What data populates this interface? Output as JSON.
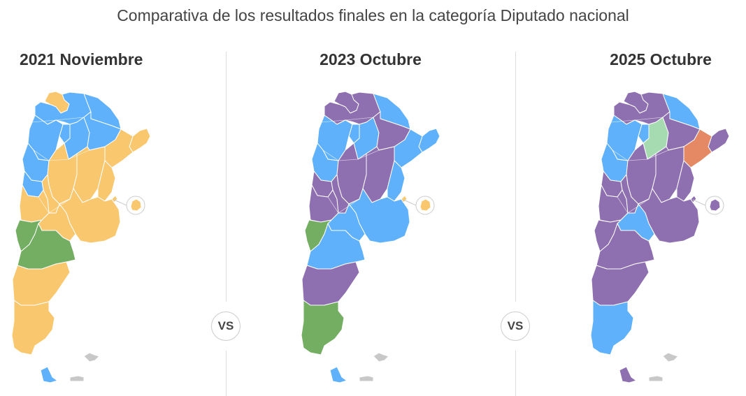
{
  "title": "Comparativa de los resultados finales en la categoría Diputado nacional",
  "vs_label": "VS",
  "colors": {
    "yellow": "#F9C76E",
    "blue": "#5EB1FA",
    "green": "#74AE63",
    "purple": "#8E6FB0",
    "lightgreen": "#A6DAB0",
    "orange": "#E48963",
    "grey": "#C8C8C8"
  },
  "maps": [
    {
      "title": "2021 Noviembre",
      "regions": {
        "jujuy": "yellow",
        "salta": "blue",
        "formosa": "blue",
        "misiones": "yellow",
        "tucuman": "blue",
        "catamarca": "blue",
        "santiago": "blue",
        "chaco": "blue",
        "corrientes": "yellow",
        "larioja": "blue",
        "sanjuan": "blue",
        "cordoba": "yellow",
        "santafe": "yellow",
        "entrerios": "yellow",
        "mendoza": "yellow",
        "sanluis": "yellow",
        "buenosaires": "yellow",
        "caba": "yellow",
        "lapampa": "yellow",
        "neuquen": "green",
        "rionegro": "green",
        "chubut": "yellow",
        "santacruz": "yellow",
        "tierradelfuego": "blue",
        "malvinas": "grey"
      }
    },
    {
      "title": "2023 Octubre",
      "regions": {
        "jujuy": "purple",
        "salta": "purple",
        "formosa": "blue",
        "misiones": "blue",
        "tucuman": "blue",
        "catamarca": "blue",
        "santiago": "blue",
        "chaco": "purple",
        "corrientes": "blue",
        "larioja": "blue",
        "sanjuan": "purple",
        "cordoba": "purple",
        "santafe": "purple",
        "entrerios": "blue",
        "mendoza": "purple",
        "sanluis": "purple",
        "buenosaires": "blue",
        "caba": "yellow",
        "lapampa": "blue",
        "neuquen": "green",
        "rionegro": "blue",
        "chubut": "purple",
        "santacruz": "green",
        "tierradelfuego": "blue",
        "malvinas": "grey"
      }
    },
    {
      "title": "2025 Octubre",
      "regions": {
        "jujuy": "purple",
        "salta": "purple",
        "formosa": "blue",
        "misiones": "purple",
        "tucuman": "blue",
        "catamarca": "blue",
        "santiago": "lightgreen",
        "chaco": "purple",
        "corrientes": "orange",
        "larioja": "blue",
        "sanjuan": "purple",
        "cordoba": "purple",
        "santafe": "purple",
        "entrerios": "purple",
        "mendoza": "purple",
        "sanluis": "purple",
        "buenosaires": "purple",
        "caba": "purple",
        "lapampa": "blue",
        "neuquen": "purple",
        "rionegro": "purple",
        "chubut": "purple",
        "santacruz": "blue",
        "tierradelfuego": "purple",
        "malvinas": "grey"
      }
    }
  ]
}
